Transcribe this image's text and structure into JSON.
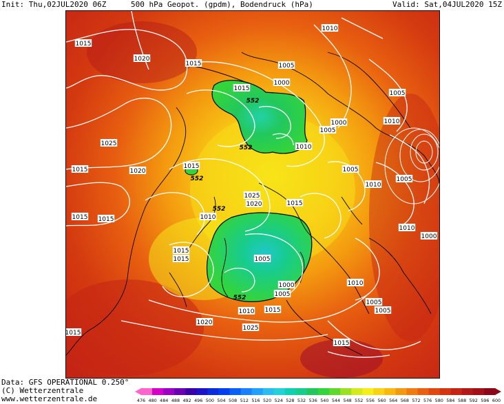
{
  "header": {
    "init": "Init: Thu,02JUL2020 06Z",
    "title": "500 hPa Geopot. (gpdm), Bodendruck (hPa)",
    "valid": "Valid: Sat,04JUL2020 15Z"
  },
  "map": {
    "pressure_labels": [
      {
        "text": "1010"
      },
      {
        "text": "1015"
      },
      {
        "text": "1015"
      },
      {
        "text": "1020"
      },
      {
        "text": "1015"
      },
      {
        "text": "1005"
      },
      {
        "text": "1000"
      },
      {
        "text": "1005"
      },
      {
        "text": "1010"
      },
      {
        "text": "1000"
      },
      {
        "text": "1005"
      },
      {
        "text": "1010"
      },
      {
        "text": "1025"
      },
      {
        "text": "1020"
      },
      {
        "text": "1015"
      },
      {
        "text": "1015"
      },
      {
        "text": "1005"
      },
      {
        "text": "1010"
      },
      {
        "text": "1025"
      },
      {
        "text": "1020"
      },
      {
        "text": "1015"
      },
      {
        "text": "1005"
      },
      {
        "text": "1015"
      },
      {
        "text": "1015"
      },
      {
        "text": "1010"
      },
      {
        "text": "1000"
      },
      {
        "text": "1015"
      },
      {
        "text": "1015"
      },
      {
        "text": "1005"
      },
      {
        "text": "1010"
      },
      {
        "text": "1000"
      },
      {
        "text": "1005"
      },
      {
        "text": "1010"
      },
      {
        "text": "1005"
      },
      {
        "text": "1010"
      },
      {
        "text": "1015"
      },
      {
        "text": "1020"
      },
      {
        "text": "1025"
      },
      {
        "text": "1015"
      },
      {
        "text": "1015"
      },
      {
        "text": "1005"
      }
    ],
    "geopot_labels": [
      {
        "text": "552"
      },
      {
        "text": "552"
      },
      {
        "text": "552"
      },
      {
        "text": "552"
      },
      {
        "text": "552"
      }
    ]
  },
  "footer": {
    "data_source": "Data: GFS OPERATIONAL 0.250°",
    "copyright": "(C) Wetterzentrale",
    "website": "www.wetterzentrale.de"
  },
  "colorbar": {
    "ticks": [
      "476",
      "480",
      "484",
      "488",
      "492",
      "496",
      "500",
      "504",
      "508",
      "512",
      "516",
      "520",
      "524",
      "528",
      "532",
      "536",
      "540",
      "544",
      "548",
      "552",
      "556",
      "560",
      "564",
      "568",
      "572",
      "576",
      "580",
      "584",
      "588",
      "592",
      "596",
      "600"
    ],
    "colors": [
      "#ff66cc",
      "#d400c8",
      "#9c00c4",
      "#6a00b4",
      "#3a00a8",
      "#1c12c8",
      "#0a2cdc",
      "#0040f0",
      "#0a5ff5",
      "#1a80ff",
      "#20a0ff",
      "#2bbcf0",
      "#22d2d8",
      "#10d0b4",
      "#18cc8c",
      "#22c85c",
      "#34d43c",
      "#5ed82c",
      "#9ae024",
      "#d4ea1c",
      "#f6ee1a",
      "#f8d414",
      "#f8b810",
      "#f49a10",
      "#f07c10",
      "#e86010",
      "#e04810",
      "#d43410",
      "#c42414",
      "#b21818",
      "#a21018",
      "#8c0818"
    ]
  }
}
